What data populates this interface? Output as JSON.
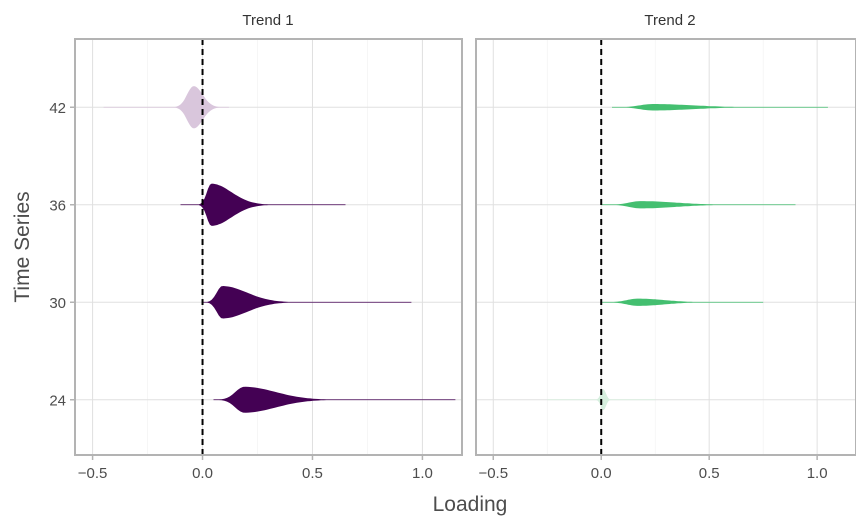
{
  "chart_data": {
    "type": "violin",
    "xlabel": "Loading",
    "ylabel": "Time Series",
    "xlim": [
      -0.58,
      1.18
    ],
    "ylim": [
      20.6,
      46.2
    ],
    "x_ticks": [
      -0.5,
      0.0,
      0.5,
      1.0
    ],
    "x_tick_labels": [
      "−0.5",
      "0.0",
      "0.5",
      "1.0"
    ],
    "y_ticks": [
      24,
      30,
      36,
      42
    ],
    "y_tick_labels": [
      "24",
      "30",
      "36",
      "42"
    ],
    "reference_line": {
      "x": 0,
      "style": "dashed",
      "color": "#000000"
    },
    "grid": true,
    "panels": [
      {
        "strip": "Trend 1",
        "violins": [
          {
            "time_series": 42,
            "color": "#d9c6dc",
            "min": -0.45,
            "max": 0.12,
            "mode": -0.04,
            "width_at_mode": 2.6,
            "spread_left": 0.03,
            "spread_right": 0.04
          },
          {
            "time_series": 36,
            "color": "#440154",
            "min": -0.1,
            "max": 0.65,
            "mode": 0.04,
            "width_at_mode": 2.6,
            "spread_left": 0.02,
            "spread_right": 0.09
          },
          {
            "time_series": 30,
            "color": "#440154",
            "min": 0.0,
            "max": 0.95,
            "mode": 0.09,
            "width_at_mode": 2.0,
            "spread_left": 0.025,
            "spread_right": 0.11
          },
          {
            "time_series": 24,
            "color": "#440154",
            "min": 0.05,
            "max": 1.15,
            "mode": 0.19,
            "width_at_mode": 1.6,
            "spread_left": 0.04,
            "spread_right": 0.14
          }
        ]
      },
      {
        "strip": "Trend 2",
        "violins": [
          {
            "time_series": 42,
            "color": "#44bf70",
            "min": 0.05,
            "max": 1.05,
            "mode": 0.24,
            "width_at_mode": 0.4,
            "spread_left": 0.06,
            "spread_right": 0.18
          },
          {
            "time_series": 36,
            "color": "#44bf70",
            "min": 0.0,
            "max": 0.9,
            "mode": 0.18,
            "width_at_mode": 0.45,
            "spread_left": 0.05,
            "spread_right": 0.16
          },
          {
            "time_series": 30,
            "color": "#44bf70",
            "min": 0.0,
            "max": 0.75,
            "mode": 0.17,
            "width_at_mode": 0.45,
            "spread_left": 0.05,
            "spread_right": 0.12
          },
          {
            "time_series": 24,
            "color": "#d6efde",
            "min": -0.25,
            "max": 0.25,
            "mode": 0.01,
            "width_at_mode": 1.3,
            "spread_left": 0.012,
            "spread_right": 0.012
          }
        ]
      }
    ]
  }
}
